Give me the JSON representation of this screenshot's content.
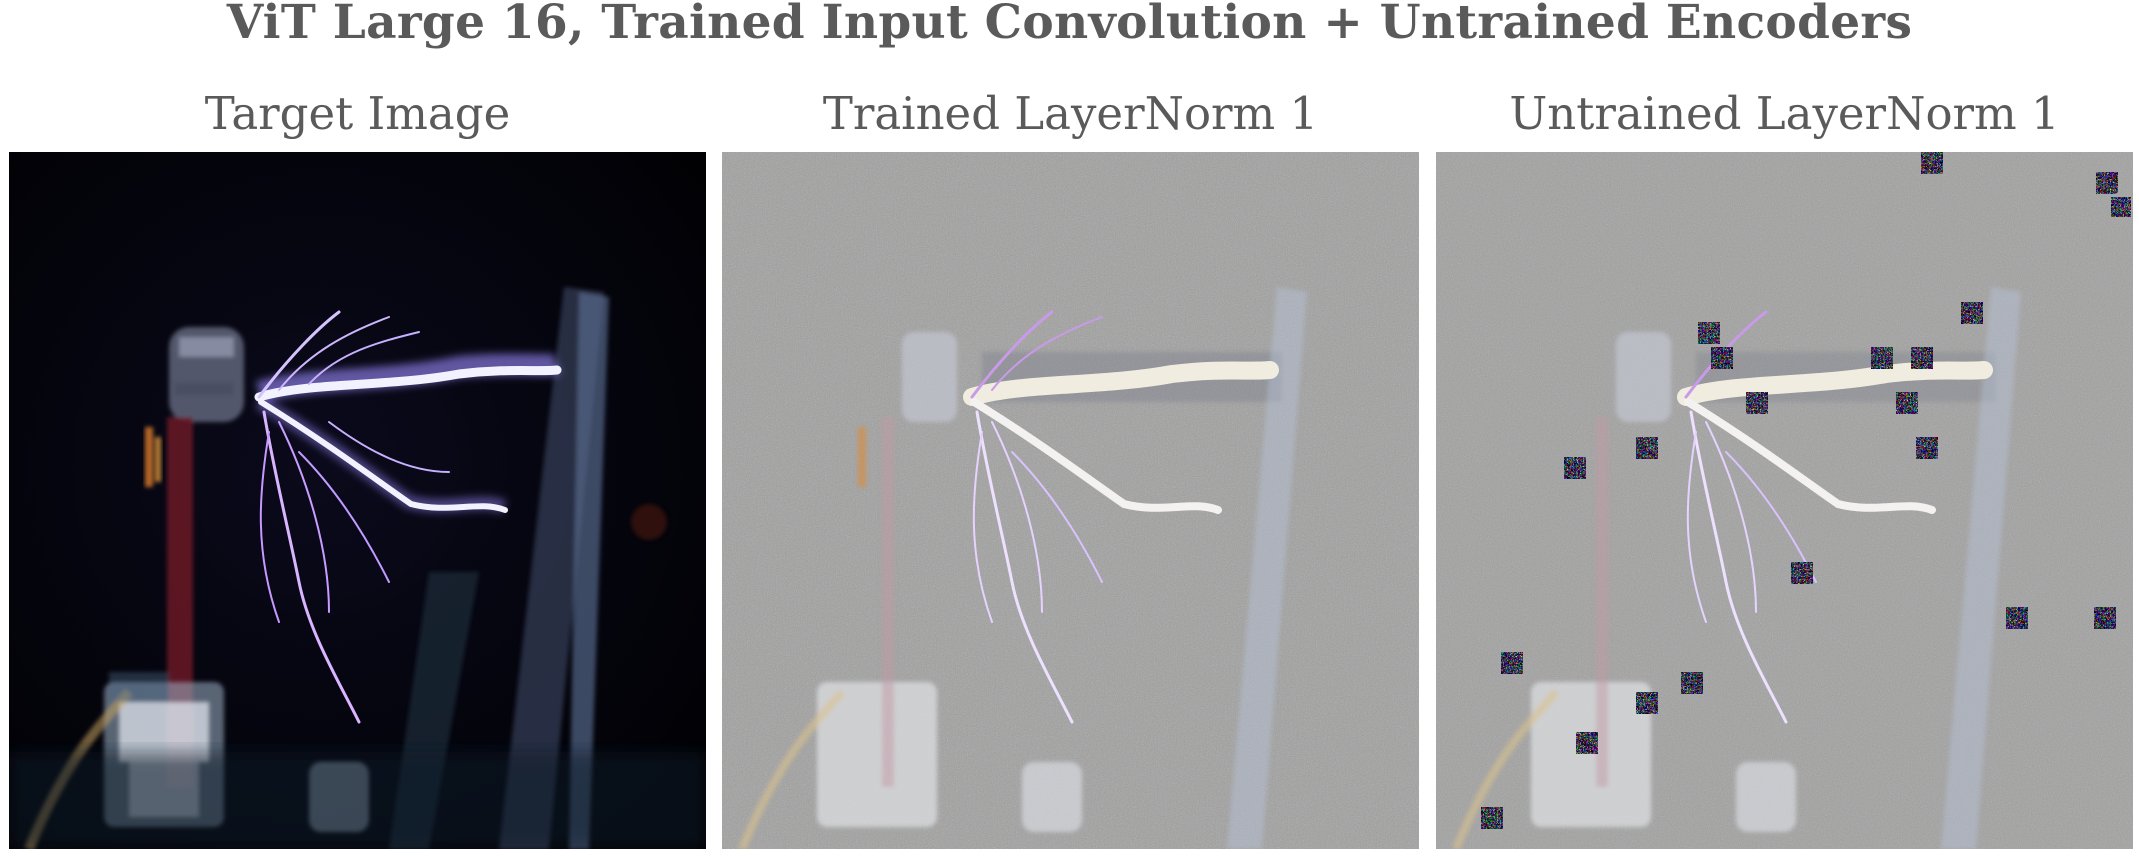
{
  "figure": {
    "title": "ViT Large 16, Trained Input Convolution + Untrained Encoders"
  },
  "panels": [
    {
      "title": "Target Image",
      "style": "photo",
      "background": "#02020a"
    },
    {
      "title": "Trained LayerNorm 1",
      "style": "noisy-reconstruction",
      "background": "#9a9a98"
    },
    {
      "title": "Untrained LayerNorm 1",
      "style": "noisy-reconstruction-with-artifacts",
      "background": "#9c9c9a"
    }
  ]
}
